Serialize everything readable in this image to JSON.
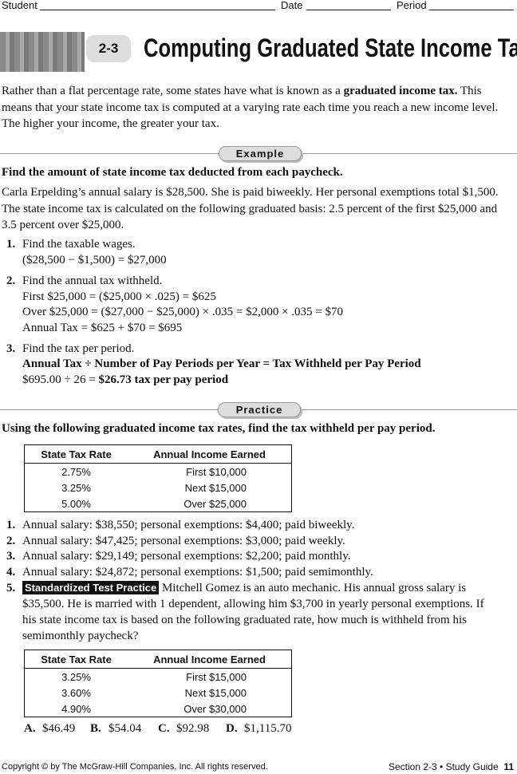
{
  "header": {
    "student": "Student",
    "date": "Date",
    "period": "Period"
  },
  "lesson": {
    "number": "2-3",
    "title": "Computing Graduated State Income Tax"
  },
  "intro": [
    "Rather than a flat percentage rate, some states have what is known as a ",
    "graduated income tax.",
    " This means that your state income tax is computed at a varying rate each time you reach a new income level. The higher your income, the greater your tax."
  ],
  "example": {
    "label": "Example",
    "instruction": "Find the amount of state income tax deducted from each paycheck.",
    "problem": "Carla Erpelding’s annual salary is $28,500. She is paid biweekly. Her personal exemptions total $1,500. The state income tax is calculated on the following graduated basis: 2.5 percent of the first $25,000 and 3.5 percent over $25,000.",
    "steps": [
      {
        "number": "1.",
        "text": "Find the taxable wages.",
        "lines": [
          "($28,500 − $1,500) = $27,000"
        ]
      },
      {
        "number": "2.",
        "text": "Find the annual tax withheld.",
        "lines": [
          "First $25,000 = ($25,000 × .025) = $625",
          "Over $25,000 = ($27,000 − $25,000) × .035 = $2,000 × .035 = $70",
          "Annual Tax = $625 + $70 = $695"
        ]
      },
      {
        "number": "3.",
        "text": "Find the tax per period.",
        "formula": "Annual Tax ÷ Number of Pay Periods per Year = Tax Withheld per Pay Period",
        "result": [
          "$695.00 ÷ 26 = ",
          "$26.73 tax per pay period"
        ]
      }
    ]
  },
  "practice": {
    "label": "Practice",
    "instruction": "Using the following graduated income tax rates, find the tax withheld per pay period.",
    "table1": {
      "headers": [
        "State Tax Rate",
        "Annual Income Earned"
      ],
      "rows": [
        [
          "2.75%",
          "First $10,000"
        ],
        [
          "3.25%",
          "Next $15,000"
        ],
        [
          "5.00%",
          "Over $25,000"
        ]
      ]
    },
    "problems": [
      {
        "number": "1.",
        "text": "Annual salary: $38,550; personal exemptions: $4,400; paid biweekly."
      },
      {
        "number": "2.",
        "text": "Annual salary: $47,425; personal exemptions: $3,000; paid weekly."
      },
      {
        "number": "3.",
        "text": "Annual salary: $29,149; personal exemptions: $2,200; paid monthly."
      },
      {
        "number": "4.",
        "text": "Annual salary: $24,872; personal exemptions: $1,500; paid semimonthly."
      }
    ],
    "problem5": {
      "number": "5.",
      "badge": "Standardized Test Practice",
      "text": "Mitchell Gomez is an auto mechanic. His annual gross salary is $35,500. He is married with 1 dependent, allowing him $3,700 in yearly personal exemptions. If his state income tax is based on the following graduated rate, how much is withheld from his semimonthly paycheck?"
    },
    "table2": {
      "headers": [
        "State Tax Rate",
        "Annual Income Earned"
      ],
      "rows": [
        [
          "3.25%",
          "First $15,000"
        ],
        [
          "3.60%",
          "Next $15,000"
        ],
        [
          "4.90%",
          "Over $30,000"
        ]
      ]
    },
    "choices": [
      {
        "letter": "A.",
        "value": "$46.49"
      },
      {
        "letter": "B.",
        "value": "$54.04"
      },
      {
        "letter": "C.",
        "value": "$92.98"
      },
      {
        "letter": "D.",
        "value": "$1,115.70"
      }
    ]
  },
  "footer": {
    "copyright": "Copyright © by The McGraw-Hill Companies, Inc. All rights reserved.",
    "section": "Section 2-3",
    "separator": "•",
    "guide": "Study Guide",
    "page": "11"
  }
}
